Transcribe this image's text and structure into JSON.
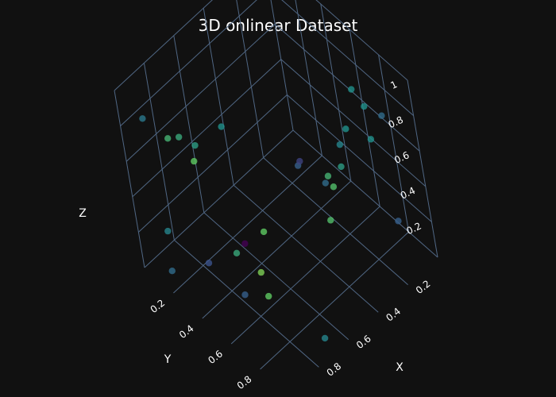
{
  "chart_data": {
    "type": "scatter",
    "title": "3D onlinear Dataset",
    "axes": {
      "x": {
        "label": "X",
        "ticks": [
          "0.2",
          "0.4",
          "0.6",
          "0.8"
        ]
      },
      "y": {
        "label": "Y",
        "ticks": [
          "0.2",
          "0.4",
          "0.6",
          "0.8"
        ]
      },
      "z": {
        "label": "Z",
        "ticks": [
          "0.2",
          "0.4",
          "0.6",
          "0.8",
          "1"
        ]
      }
    },
    "grid": true,
    "colorscale": [
      "#440154",
      "#3b528b",
      "#21918c",
      "#5ec962",
      "#fde725"
    ],
    "points": [
      {
        "x": 0.15,
        "y": 0.95,
        "z": 0.88,
        "c": 0.35
      },
      {
        "x": 0.1,
        "y": 0.75,
        "z": 0.75,
        "c": 0.5
      },
      {
        "x": 0.2,
        "y": 0.9,
        "z": 0.75,
        "c": 0.5
      },
      {
        "x": 0.05,
        "y": 0.6,
        "z": 0.7,
        "c": 0.5
      },
      {
        "x": 0.05,
        "y": 0.8,
        "z": 0.1,
        "c": 0.3
      },
      {
        "x": 0.3,
        "y": 0.85,
        "z": 0.85,
        "c": 0.5
      },
      {
        "x": 0.35,
        "y": 0.85,
        "z": 0.8,
        "c": 0.45
      },
      {
        "x": 0.4,
        "y": 0.9,
        "z": 0.75,
        "c": 0.55
      },
      {
        "x": 0.45,
        "y": 0.85,
        "z": 0.7,
        "c": 0.65
      },
      {
        "x": 0.5,
        "y": 0.95,
        "z": 0.75,
        "c": 0.7
      },
      {
        "x": 0.55,
        "y": 0.95,
        "z": 0.6,
        "c": 0.7
      },
      {
        "x": 0.4,
        "y": 0.75,
        "z": 0.55,
        "c": 0.35
      },
      {
        "x": 0.6,
        "y": 0.85,
        "z": 0.9,
        "c": 0.2
      },
      {
        "x": 0.65,
        "y": 0.9,
        "z": 0.95,
        "c": 0.3
      },
      {
        "x": 0.7,
        "y": 0.6,
        "z": 0.4,
        "c": 0.75
      },
      {
        "x": 0.75,
        "y": 0.5,
        "z": 0.3,
        "c": 0.0
      },
      {
        "x": 0.72,
        "y": 0.55,
        "z": 0.15,
        "c": 0.8
      },
      {
        "x": 0.7,
        "y": 0.35,
        "z": 0.1,
        "c": 0.6
      },
      {
        "x": 0.7,
        "y": 0.55,
        "z": 0.0,
        "c": 0.75
      },
      {
        "x": 0.8,
        "y": 0.25,
        "z": 0.05,
        "c": 0.25
      },
      {
        "x": 0.8,
        "y": 0.5,
        "z": 0.05,
        "c": 0.3
      },
      {
        "x": 0.7,
        "y": 0.95,
        "z": 0.05,
        "c": 0.45
      },
      {
        "x": 0.9,
        "y": 0.1,
        "z": 0.2,
        "c": 0.45
      },
      {
        "x": 0.95,
        "y": 0.15,
        "z": 0.05,
        "c": 0.35
      },
      {
        "x": 0.75,
        "y": 0.2,
        "z": 0.55,
        "c": 0.75
      },
      {
        "x": 0.8,
        "y": 0.3,
        "z": 0.75,
        "c": 0.55
      },
      {
        "x": 0.85,
        "y": 0.25,
        "z": 0.8,
        "c": 0.6
      },
      {
        "x": 0.88,
        "y": 0.2,
        "z": 0.78,
        "c": 0.65
      },
      {
        "x": 0.9,
        "y": 0.05,
        "z": 0.8,
        "c": 0.4
      },
      {
        "x": 0.7,
        "y": 0.4,
        "z": 0.85,
        "c": 0.5
      }
    ]
  }
}
